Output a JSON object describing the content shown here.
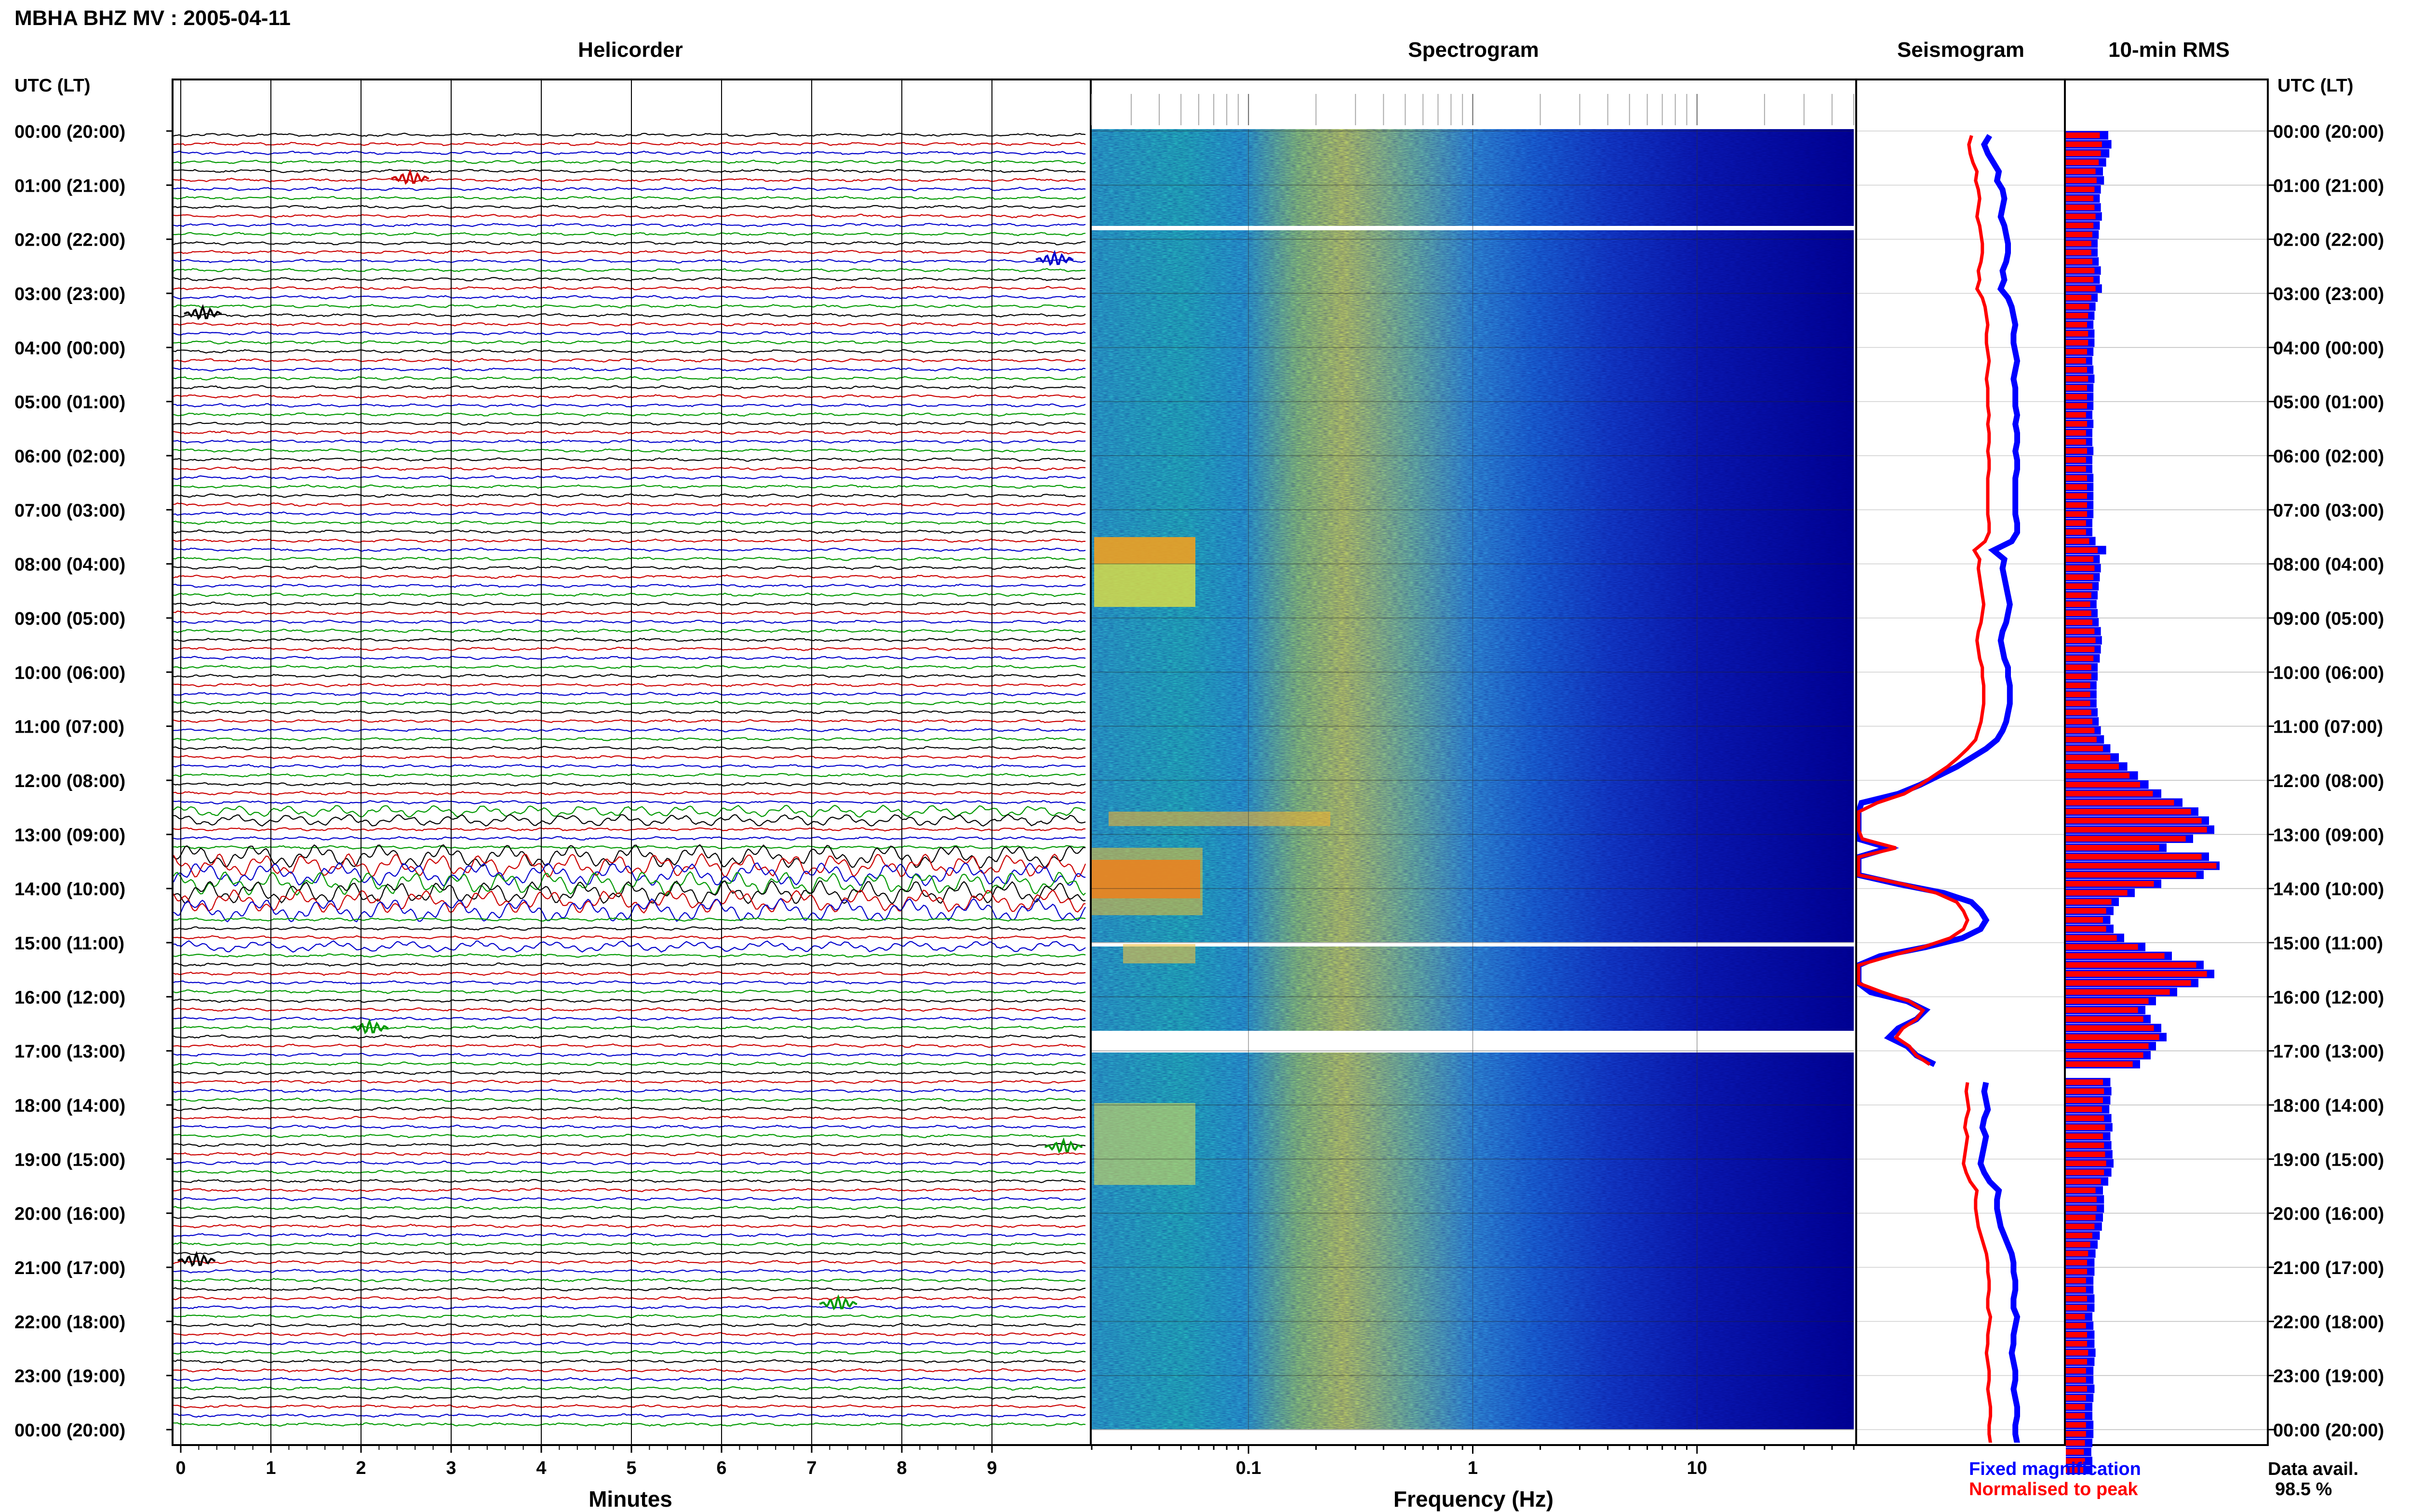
{
  "header": {
    "station_title": "MBHA BHZ MV : 2005-04-11",
    "left_axis_label": "UTC (LT)",
    "right_axis_label": "UTC (LT)"
  },
  "panels": {
    "helicorder": "Helicorder",
    "spectrogram": "Spectrogram",
    "seismogram": "Seismogram",
    "rms": "10-min RMS"
  },
  "axis_titles": {
    "minutes": "Minutes",
    "frequency": "Frequency (Hz)"
  },
  "legend": {
    "fixed": "Fixed magnification",
    "normalised": "Normalised to peak",
    "fixed_color": "#0000ff",
    "normalised_color": "#ff0000"
  },
  "data_availability": {
    "label": "Data avail.",
    "value": "98.5 %"
  },
  "chart_data": {
    "type": "heatmap",
    "time_labels": [
      "00:00 (20:00)",
      "01:00 (21:00)",
      "02:00 (22:00)",
      "03:00 (23:00)",
      "04:00 (00:00)",
      "05:00 (01:00)",
      "06:00 (02:00)",
      "07:00 (03:00)",
      "08:00 (04:00)",
      "09:00 (05:00)",
      "10:00 (06:00)",
      "11:00 (07:00)",
      "12:00 (08:00)",
      "13:00 (09:00)",
      "14:00 (10:00)",
      "15:00 (11:00)",
      "16:00 (12:00)",
      "17:00 (13:00)",
      "18:00 (14:00)",
      "19:00 (15:00)",
      "20:00 (16:00)",
      "21:00 (17:00)",
      "22:00 (18:00)",
      "23:00 (19:00)",
      "00:00 (20:00)"
    ],
    "minutes_ticks": [
      "0",
      "1",
      "2",
      "3",
      "4",
      "5",
      "6",
      "7",
      "8",
      "9"
    ],
    "frequency_ticks": [
      "0.1",
      "1",
      "10"
    ],
    "frequency_tick_values": [
      0.1,
      1,
      10
    ],
    "frequency_range_hz": [
      0.02,
      50
    ],
    "frequency_scale": "log",
    "trace_colors": [
      "#000000",
      "#cc0000",
      "#0000cc",
      "#009900"
    ],
    "traces_per_hour": 6,
    "rms_fixed": [
      4.0,
      4.3,
      4.1,
      3.8,
      3.5,
      3.6,
      3.3,
      3.2,
      3.3,
      3.4,
      3.2,
      3.1,
      3.0,
      3.0,
      3.1,
      3.3,
      3.2,
      3.4,
      3.0,
      2.8,
      2.7,
      2.6,
      2.7,
      2.7,
      2.6,
      2.5,
      2.6,
      2.7,
      2.6,
      2.6,
      2.6,
      2.5,
      2.6,
      2.5,
      2.5,
      2.6,
      2.5,
      2.5,
      2.6,
      2.6,
      2.6,
      2.6,
      2.6,
      2.5,
      2.5,
      2.8,
      3.8,
      3.2,
      3.3,
      3.2,
      3.1,
      3.0,
      2.9,
      3.0,
      3.1,
      3.3,
      3.4,
      3.3,
      3.2,
      3.0,
      3.0,
      2.9,
      2.9,
      2.9,
      3.0,
      3.1,
      3.3,
      3.6,
      4.2,
      5.0,
      5.8,
      6.8,
      7.8,
      9.0,
      11.0,
      12.5,
      13.5,
      14.0,
      12.0,
      9.5,
      13.5,
      14.5,
      13.0,
      9.0,
      6.5,
      5.0,
      4.5,
      4.2,
      4.5,
      5.5,
      7.5,
      10.0,
      13.0,
      14.0,
      12.5,
      10.5,
      8.5,
      7.5,
      8.0,
      9.0,
      9.5,
      8.5,
      8.0,
      7.0,
      null,
      4.2,
      4.3,
      4.2,
      4.1,
      4.3,
      4.4,
      4.2,
      4.3,
      4.4,
      4.5,
      4.3,
      4.0,
      3.5,
      3.6,
      3.6,
      3.5,
      3.4,
      3.2,
      3.0,
      2.8,
      2.7,
      2.7,
      2.6,
      2.6,
      2.7,
      2.7,
      2.5,
      2.6,
      2.7,
      2.7,
      2.8,
      2.7,
      2.6,
      2.6,
      2.7,
      2.6,
      2.5,
      2.5,
      2.6,
      2.6,
      2.5,
      2.4,
      2.5,
      2.5
    ],
    "rms_normalised": [
      3.2,
      3.4,
      3.3,
      3.1,
      2.8,
      2.9,
      2.7,
      2.6,
      2.7,
      2.8,
      2.6,
      2.5,
      2.4,
      2.4,
      2.5,
      2.7,
      2.6,
      2.8,
      2.4,
      2.2,
      2.1,
      2.0,
      2.1,
      2.1,
      2.0,
      1.9,
      2.0,
      2.1,
      2.0,
      2.0,
      2.0,
      1.9,
      2.0,
      1.9,
      1.9,
      2.0,
      1.9,
      1.9,
      2.0,
      2.0,
      2.0,
      2.0,
      2.0,
      1.9,
      1.9,
      2.2,
      3.0,
      2.6,
      2.7,
      2.6,
      2.5,
      2.4,
      2.3,
      2.4,
      2.5,
      2.7,
      2.8,
      2.7,
      2.6,
      2.4,
      2.4,
      2.3,
      2.3,
      2.3,
      2.4,
      2.5,
      2.7,
      2.9,
      3.5,
      4.2,
      5.0,
      6.0,
      7.0,
      8.2,
      10.2,
      11.8,
      12.8,
      13.3,
      11.3,
      8.8,
      12.8,
      14.2,
      12.3,
      8.3,
      5.8,
      4.3,
      3.8,
      3.5,
      3.8,
      4.8,
      6.8,
      9.3,
      12.3,
      13.3,
      11.8,
      9.8,
      7.8,
      6.8,
      7.3,
      8.3,
      8.8,
      7.8,
      7.3,
      6.3,
      null,
      3.5,
      3.6,
      3.5,
      3.4,
      3.6,
      3.7,
      3.5,
      3.6,
      3.7,
      3.8,
      3.6,
      3.3,
      2.8,
      2.9,
      2.9,
      2.8,
      2.7,
      2.5,
      2.3,
      2.1,
      2.0,
      2.0,
      1.9,
      1.9,
      2.0,
      2.0,
      1.8,
      1.9,
      2.0,
      2.0,
      2.1,
      2.0,
      1.9,
      1.9,
      2.0,
      1.9,
      1.8,
      1.8,
      1.9,
      1.9,
      1.8,
      1.7,
      1.8,
      1.8
    ]
  }
}
